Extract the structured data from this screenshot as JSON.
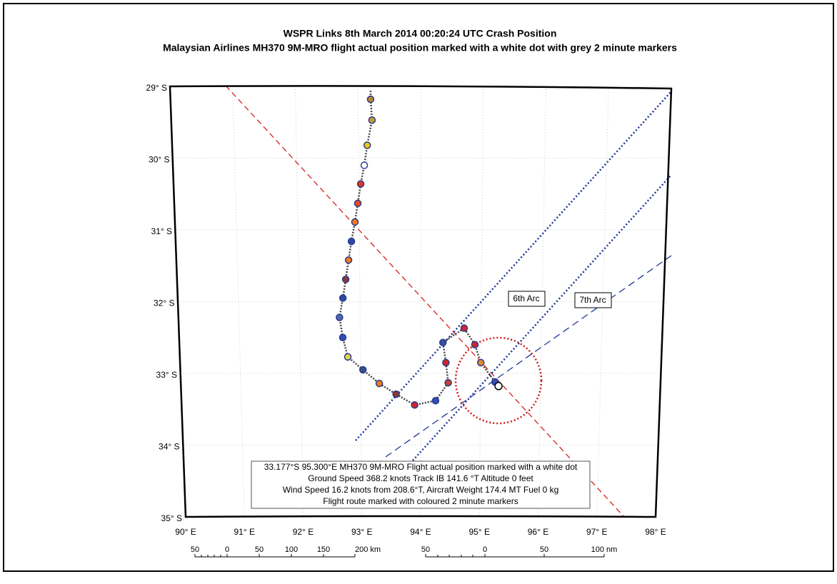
{
  "title": "WSPR Links 8th March 2014 00:20:24 UTC Crash Position",
  "subtitle": "Malaysian Airlines MH370 9M-MRO flight actual position marked with a white dot with grey 2 minute markers",
  "lat_ticks": [
    {
      "value": 29,
      "label": "29° S"
    },
    {
      "value": 30,
      "label": "30° S"
    },
    {
      "value": 31,
      "label": "31° S"
    },
    {
      "value": 32,
      "label": "32° S"
    },
    {
      "value": 33,
      "label": "33° S"
    },
    {
      "value": 34,
      "label": "34° S"
    },
    {
      "value": 35,
      "label": "35° S"
    }
  ],
  "lon_ticks": [
    {
      "value": 90,
      "label": "90° E"
    },
    {
      "value": 91,
      "label": "91° E"
    },
    {
      "value": 92,
      "label": "92° E"
    },
    {
      "value": 93,
      "label": "93° E"
    },
    {
      "value": 94,
      "label": "94° E"
    },
    {
      "value": 95,
      "label": "95° E"
    },
    {
      "value": 96,
      "label": "96° E"
    },
    {
      "value": 97,
      "label": "97° E"
    },
    {
      "value": 98,
      "label": "98° E"
    }
  ],
  "arc_labels": [
    "6th Arc",
    "7th Arc"
  ],
  "markers": [
    {
      "lon": 93.2,
      "lat": 29.18,
      "color": "#b8862b"
    },
    {
      "lon": 93.22,
      "lat": 29.47,
      "color": "#c99a3a"
    },
    {
      "lon": 93.14,
      "lat": 29.82,
      "color": "#f2c413"
    },
    {
      "lon": 93.09,
      "lat": 30.1,
      "color": "#ffffff"
    },
    {
      "lon": 93.03,
      "lat": 30.36,
      "color": "#e8341c"
    },
    {
      "lon": 92.98,
      "lat": 30.63,
      "color": "#ec4a1e"
    },
    {
      "lon": 92.93,
      "lat": 30.89,
      "color": "#f07a1a"
    },
    {
      "lon": 92.87,
      "lat": 31.16,
      "color": "#2b4aa8"
    },
    {
      "lon": 92.82,
      "lat": 31.42,
      "color": "#f07a1a"
    },
    {
      "lon": 92.77,
      "lat": 31.69,
      "color": "#8b3a2e"
    },
    {
      "lon": 92.72,
      "lat": 31.95,
      "color": "#2b4aa8"
    },
    {
      "lon": 92.66,
      "lat": 32.22,
      "color": "#5067b0"
    },
    {
      "lon": 92.71,
      "lat": 32.5,
      "color": "#3050b8"
    },
    {
      "lon": 92.79,
      "lat": 32.77,
      "color": "#e6d84a"
    },
    {
      "lon": 93.04,
      "lat": 32.95,
      "color": "#35508f"
    },
    {
      "lon": 93.31,
      "lat": 33.14,
      "color": "#f07a1a"
    },
    {
      "lon": 93.59,
      "lat": 33.29,
      "color": "#8b3a2e"
    },
    {
      "lon": 93.9,
      "lat": 33.44,
      "color": "#d0262a"
    },
    {
      "lon": 94.25,
      "lat": 33.38,
      "color": "#3050b8"
    },
    {
      "lon": 94.46,
      "lat": 33.13,
      "color": "#c8402a"
    },
    {
      "lon": 94.42,
      "lat": 32.85,
      "color": "#d0262a"
    },
    {
      "lon": 94.37,
      "lat": 32.57,
      "color": "#3a4fa0"
    },
    {
      "lon": 94.72,
      "lat": 32.37,
      "color": "#d0262a"
    },
    {
      "lon": 94.9,
      "lat": 32.6,
      "color": "#d0262a"
    },
    {
      "lon": 95.0,
      "lat": 32.85,
      "color": "#e08a2a"
    },
    {
      "lon": 95.24,
      "lat": 33.12,
      "color": "#3050b8"
    }
  ],
  "crash_position": {
    "lon": 95.3,
    "lat": 33.177
  },
  "info_lines": [
    "33.177°S 95.300°E MH370 9M-MRO Flight actual position marked with a white dot",
    "Ground Speed 368.2 knots Track IB 141.6 °T Altitude 0 feet",
    "Wind Speed 16.2 knots from 208.6°T, Aircraft Weight 174.4 MT Fuel 0 kg",
    "Flight route marked with coloured 2 minute markers"
  ],
  "km_scale": [
    "50",
    "0",
    "50",
    "100",
    "150",
    "200 km"
  ],
  "nm_scale": [
    "50",
    "0",
    "50",
    "100 nm"
  ]
}
